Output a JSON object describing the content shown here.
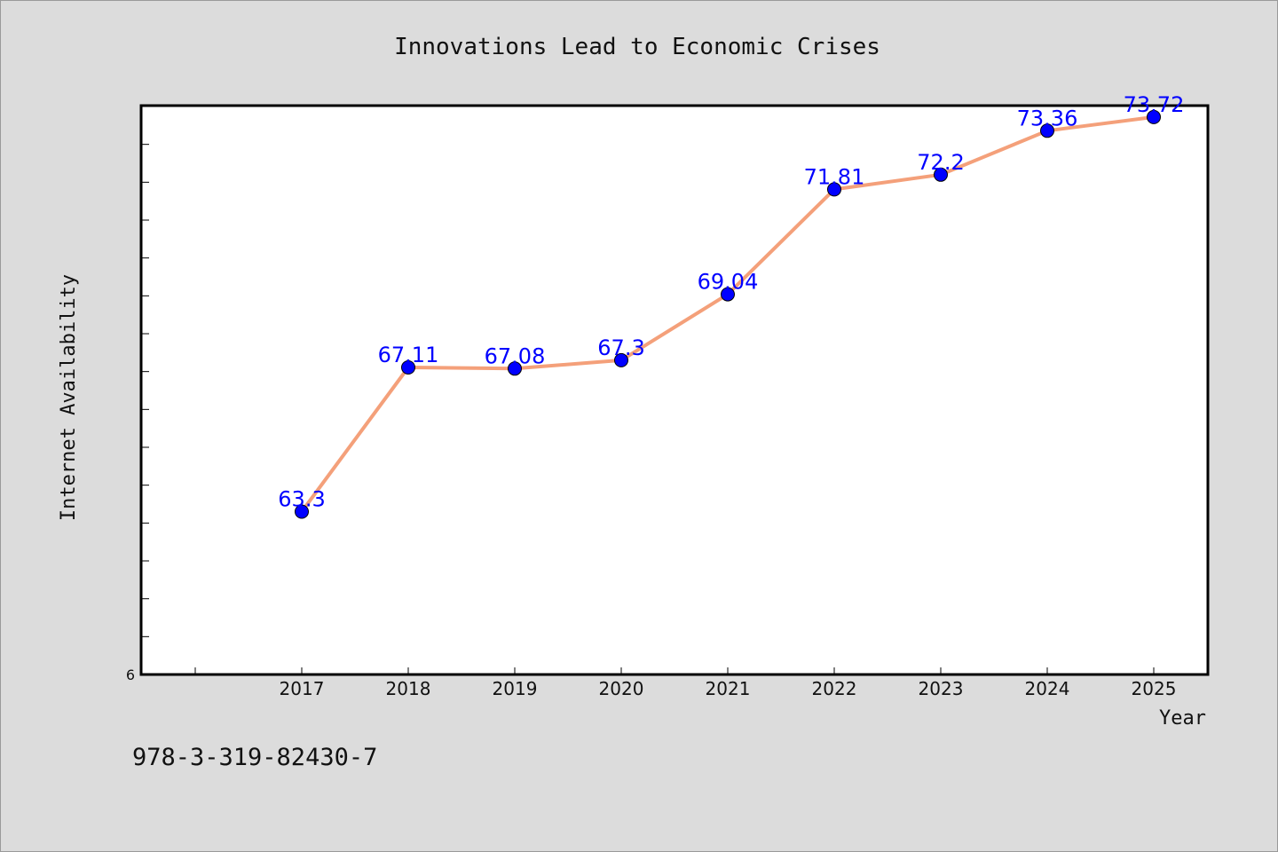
{
  "chart_data": {
    "type": "line",
    "title": "Innovations Lead to Economic Crises",
    "xlabel": "Year",
    "ylabel": "Internet Availability",
    "x": [
      "2017",
      "2018",
      "2019",
      "2020",
      "2021",
      "2022",
      "2023",
      "2024",
      "2025"
    ],
    "series": [
      {
        "values": [
          63.3,
          67.11,
          67.08,
          67.3,
          69.04,
          71.81,
          72.2,
          73.36,
          73.72
        ],
        "labels": [
          "63.3",
          "67.11",
          "67.08",
          "67.3",
          "69.04",
          "71.81",
          "72.2",
          "73.36",
          "73.72"
        ],
        "line_color": "#f4a07a",
        "marker_color": "#0000ff"
      }
    ],
    "ylim": [
      59,
      74
    ],
    "ytick_label": "6",
    "grid": false,
    "legend": "none"
  },
  "footer": {
    "text": "978-3-319-82430-7"
  }
}
